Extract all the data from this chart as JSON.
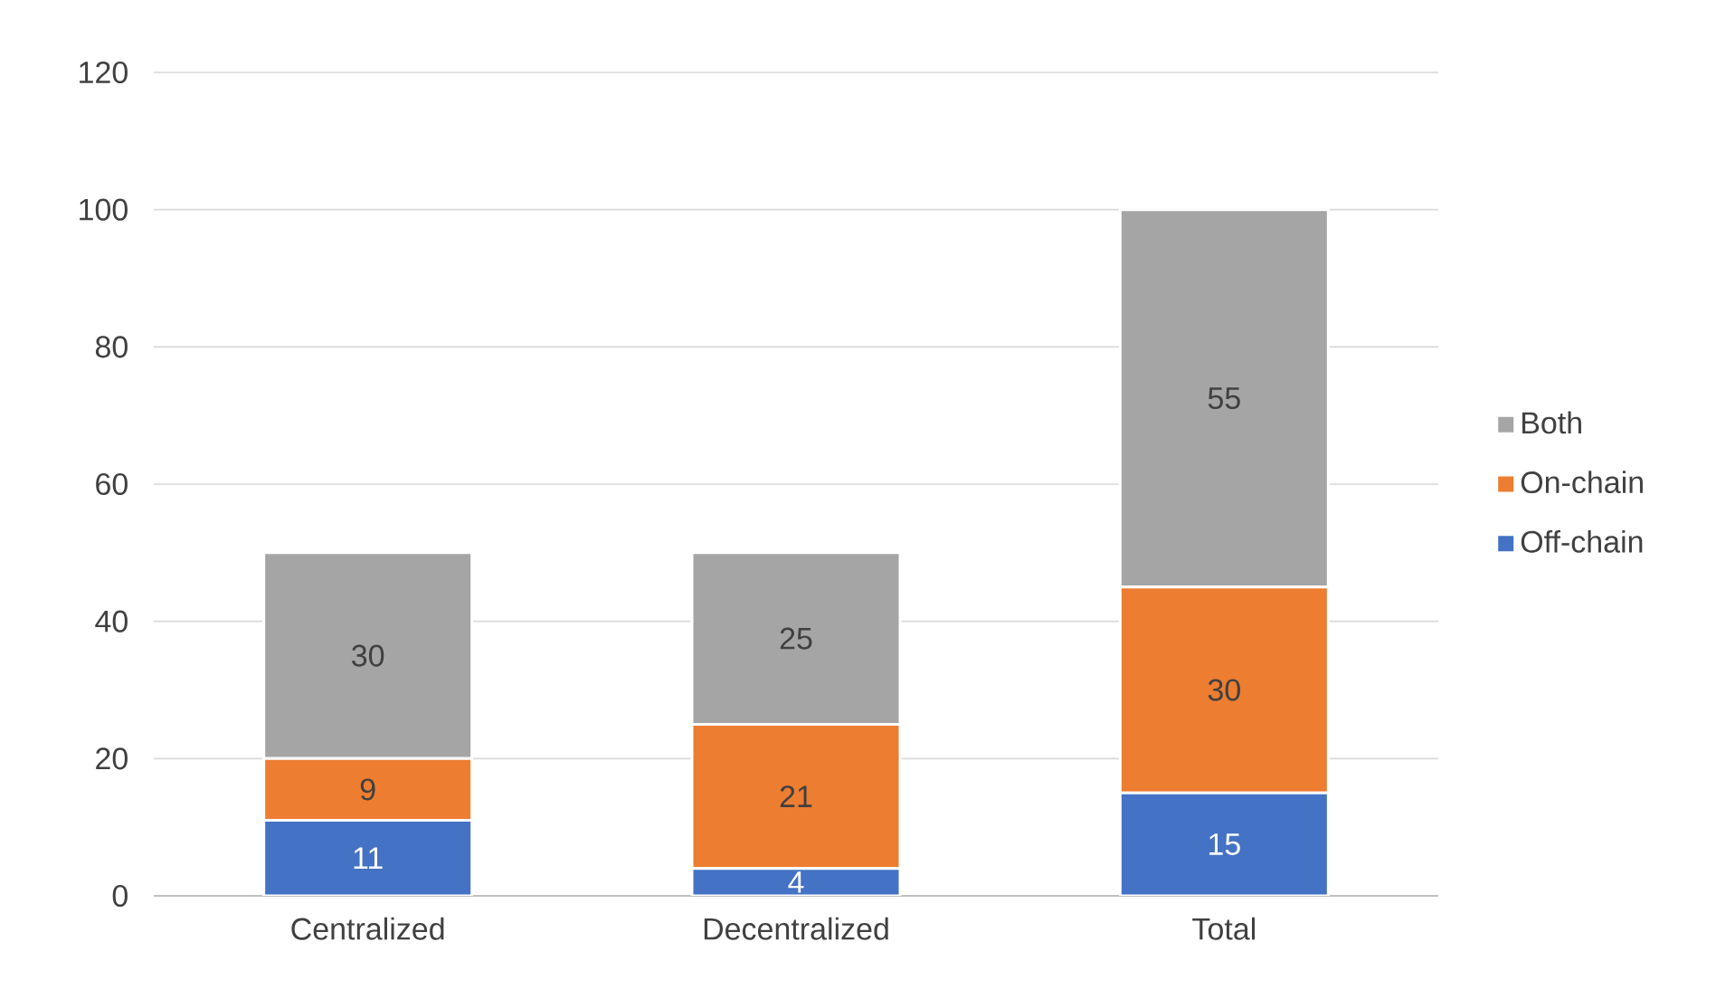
{
  "chart_data": {
    "type": "bar",
    "stacked": true,
    "categories": [
      "Centralized",
      "Decentralized",
      "Total"
    ],
    "series": [
      {
        "name": "Off-chain",
        "color": "#4472c4",
        "values": [
          11,
          4,
          15
        ]
      },
      {
        "name": "On-chain",
        "color": "#ed7d31",
        "values": [
          9,
          21,
          30
        ]
      },
      {
        "name": "Both",
        "color": "#a5a5a5",
        "values": [
          30,
          25,
          55
        ]
      }
    ],
    "ylim": [
      0,
      120
    ],
    "yticks": [
      0,
      20,
      40,
      60,
      80,
      100,
      120
    ],
    "grid": "y",
    "legend": "right",
    "data_labels": true
  }
}
